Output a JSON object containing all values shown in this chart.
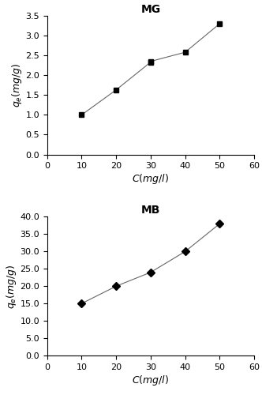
{
  "mg_x": [
    10,
    20,
    30,
    30,
    40,
    50
  ],
  "mg_y": [
    1.0,
    1.63,
    2.33,
    2.35,
    2.58,
    3.3
  ],
  "mb_x": [
    10,
    20,
    30,
    40,
    50
  ],
  "mb_y": [
    15.0,
    20.0,
    24.0,
    30.0,
    38.0
  ],
  "mg_title": "MG",
  "mb_title": "MB",
  "xlabel": "$\\it{C}$$(mg/l)$",
  "ylabel": "$\\it{q_e}$$(mg/g)$",
  "mg_ylim": [
    0,
    3.5
  ],
  "mg_yticks": [
    0.0,
    0.5,
    1.0,
    1.5,
    2.0,
    2.5,
    3.0,
    3.5
  ],
  "mb_ylim": [
    0,
    40
  ],
  "mb_yticks": [
    0.0,
    5.0,
    10.0,
    15.0,
    20.0,
    25.0,
    30.0,
    35.0,
    40.0
  ],
  "xlim": [
    0,
    60
  ],
  "xticks": [
    0,
    10,
    20,
    30,
    40,
    50,
    60
  ],
  "line_color": "#666666",
  "marker": "s",
  "mb_marker": "D",
  "marker_color": "black",
  "marker_size": 5,
  "bg_color": "#ffffff",
  "title_fontsize": 10,
  "label_fontsize": 9,
  "tick_fontsize": 8
}
